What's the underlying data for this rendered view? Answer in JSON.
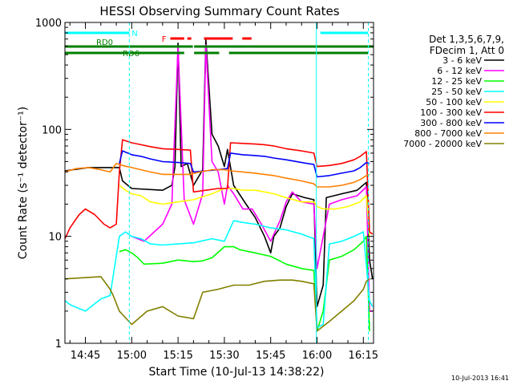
{
  "chart_data": {
    "type": "line",
    "title": "HESSI Observing Summary Count Rates",
    "xlabel": "Start Time (10-Jul-13 14:38:22)",
    "ylabel": "Count Rate (s⁻¹ detector⁻¹)",
    "y_scale": "log",
    "ylim": [
      1,
      1000
    ],
    "xlim_minutes": [
      38.37,
      138.3
    ],
    "x_ticks": [
      {
        "label": "14:45",
        "minutes": 45
      },
      {
        "label": "15:00",
        "minutes": 60
      },
      {
        "label": "15:15",
        "minutes": 75
      },
      {
        "label": "15:30",
        "minutes": 90
      },
      {
        "label": "15:45",
        "minutes": 105
      },
      {
        "label": "16:00",
        "minutes": 120
      },
      {
        "label": "16:15",
        "minutes": 135
      }
    ],
    "y_ticks": [
      {
        "label": "1",
        "value": 1
      },
      {
        "label": "10",
        "value": 10
      },
      {
        "label": "100",
        "value": 100
      },
      {
        "label": "1000",
        "value": 1000
      }
    ],
    "legend_header": [
      "Det 1,3,5,6,7,9,",
      "FDecim 1, Att 0"
    ],
    "legend_placement": "right",
    "series": [
      {
        "name": "3 - 6 keV",
        "color": "#000000",
        "points": [
          [
            38.4,
            41
          ],
          [
            46,
            44
          ],
          [
            56,
            44
          ],
          [
            57,
            33
          ],
          [
            60,
            28
          ],
          [
            70,
            27
          ],
          [
            73,
            30
          ],
          [
            74,
            45
          ],
          [
            75,
            640
          ],
          [
            76,
            45
          ],
          [
            78,
            48
          ],
          [
            80,
            30
          ],
          [
            83,
            42
          ],
          [
            84,
            700
          ],
          [
            86,
            90
          ],
          [
            88,
            70
          ],
          [
            90,
            45
          ],
          [
            91,
            65
          ],
          [
            93,
            30
          ],
          [
            97,
            20
          ],
          [
            100,
            15
          ],
          [
            103,
            10
          ],
          [
            105,
            7
          ],
          [
            106,
            10
          ],
          [
            108,
            12
          ],
          [
            110,
            19
          ],
          [
            112,
            25
          ],
          [
            116,
            23
          ],
          [
            119,
            22
          ],
          [
            120,
            2.2
          ],
          [
            122,
            3.5
          ],
          [
            123,
            23
          ],
          [
            128,
            25
          ],
          [
            133,
            27
          ],
          [
            136,
            32
          ],
          [
            137,
            6
          ],
          [
            138,
            4
          ]
        ]
      },
      {
        "name": "6 - 12 keV",
        "color": "#ff00ff",
        "points": [
          [
            60,
            10
          ],
          [
            64,
            9
          ],
          [
            70,
            13
          ],
          [
            73,
            20
          ],
          [
            75,
            600
          ],
          [
            77,
            22
          ],
          [
            80,
            13
          ],
          [
            83,
            25
          ],
          [
            84,
            620
          ],
          [
            86,
            50
          ],
          [
            88,
            40
          ],
          [
            90,
            20
          ],
          [
            91,
            30
          ],
          [
            93,
            25
          ],
          [
            96,
            18
          ],
          [
            99,
            18
          ],
          [
            102,
            13
          ],
          [
            105,
            9
          ],
          [
            108,
            14
          ],
          [
            110,
            21
          ],
          [
            112,
            26
          ],
          [
            115,
            21
          ],
          [
            119,
            20
          ],
          [
            120,
            5
          ],
          [
            122,
            10
          ],
          [
            124,
            20
          ],
          [
            128,
            22
          ],
          [
            133,
            24
          ],
          [
            136,
            29
          ],
          [
            137,
            2
          ],
          [
            138,
            2
          ]
        ]
      },
      {
        "name": "12 - 25 keV",
        "color": "#00ff00",
        "points": [
          [
            56,
            7.2
          ],
          [
            58,
            7.5
          ],
          [
            60,
            7.0
          ],
          [
            62,
            6.3
          ],
          [
            64,
            5.5
          ],
          [
            70,
            5.6
          ],
          [
            75,
            6.0
          ],
          [
            80,
            5.8
          ],
          [
            83,
            5.9
          ],
          [
            86,
            6.3
          ],
          [
            90,
            8.0
          ],
          [
            93,
            8.0
          ],
          [
            95,
            7.5
          ],
          [
            100,
            7.0
          ],
          [
            105,
            6.5
          ],
          [
            110,
            5.5
          ],
          [
            115,
            5.0
          ],
          [
            119,
            4.8
          ],
          [
            120,
            1.3
          ],
          [
            122,
            2.0
          ],
          [
            124,
            6.0
          ],
          [
            128,
            6.5
          ],
          [
            132,
            7.5
          ],
          [
            135,
            9
          ],
          [
            136,
            10
          ],
          [
            137,
            1.3
          ]
        ]
      },
      {
        "name": "25 - 50 keV",
        "color": "#00ffff",
        "points": [
          [
            38.4,
            2.5
          ],
          [
            40,
            2.3
          ],
          [
            45,
            2.0
          ],
          [
            50,
            2.6
          ],
          [
            53,
            2.8
          ],
          [
            56,
            10
          ],
          [
            58,
            11
          ],
          [
            60,
            10
          ],
          [
            63,
            9.5
          ],
          [
            66,
            8.5
          ],
          [
            70,
            8.3
          ],
          [
            75,
            8.5
          ],
          [
            80,
            8.7
          ],
          [
            86,
            9.5
          ],
          [
            90,
            9.0
          ],
          [
            93,
            14
          ],
          [
            96,
            13.5
          ],
          [
            100,
            13
          ],
          [
            105,
            12
          ],
          [
            110,
            11.5
          ],
          [
            115,
            10.5
          ],
          [
            119,
            9.5
          ],
          [
            120,
            1.4
          ],
          [
            122,
            1.5
          ],
          [
            124,
            8.5
          ],
          [
            128,
            9
          ],
          [
            132,
            10
          ],
          [
            135,
            11
          ],
          [
            137,
            2.5
          ],
          [
            138,
            2.2
          ]
        ]
      },
      {
        "name": "50 - 100 keV",
        "color": "#ffff00",
        "points": [
          [
            56,
            30
          ],
          [
            58,
            27
          ],
          [
            60,
            25
          ],
          [
            63,
            24
          ],
          [
            66,
            21
          ],
          [
            70,
            20
          ],
          [
            75,
            21
          ],
          [
            80,
            22
          ],
          [
            86,
            25
          ],
          [
            90,
            28
          ],
          [
            93,
            28
          ],
          [
            96,
            27
          ],
          [
            100,
            27
          ],
          [
            103,
            26
          ],
          [
            106,
            25
          ],
          [
            110,
            23
          ],
          [
            115,
            21
          ],
          [
            119,
            21
          ],
          [
            120,
            19
          ],
          [
            122,
            18
          ],
          [
            126,
            18
          ],
          [
            130,
            19
          ],
          [
            134,
            21
          ],
          [
            136,
            24
          ],
          [
            137,
            10
          ]
        ]
      },
      {
        "name": "100 - 300 keV",
        "color": "#ff0000",
        "points": [
          [
            38.4,
            9.5
          ],
          [
            40,
            12
          ],
          [
            43,
            16
          ],
          [
            45,
            18
          ],
          [
            48,
            16
          ],
          [
            51,
            13
          ],
          [
            53,
            12
          ],
          [
            55,
            13
          ],
          [
            56,
            40
          ],
          [
            57,
            80
          ],
          [
            60,
            75
          ],
          [
            63,
            72
          ],
          [
            66,
            69
          ],
          [
            70,
            66
          ],
          [
            75,
            65
          ],
          [
            79,
            64
          ],
          [
            80,
            26
          ],
          [
            84,
            27
          ],
          [
            88,
            28
          ],
          [
            91,
            28
          ],
          [
            92,
            75
          ],
          [
            96,
            74
          ],
          [
            100,
            73
          ],
          [
            103,
            72
          ],
          [
            106,
            70
          ],
          [
            110,
            66
          ],
          [
            115,
            63
          ],
          [
            119,
            60
          ],
          [
            120,
            45
          ],
          [
            124,
            46
          ],
          [
            128,
            48
          ],
          [
            132,
            52
          ],
          [
            134,
            56
          ],
          [
            136,
            62
          ],
          [
            137,
            11
          ],
          [
            138,
            10.5
          ]
        ]
      },
      {
        "name": "300 - 800 keV",
        "color": "#0000ff",
        "points": [
          [
            56,
            48
          ],
          [
            57,
            63
          ],
          [
            60,
            58
          ],
          [
            63,
            56
          ],
          [
            66,
            53
          ],
          [
            70,
            50
          ],
          [
            75,
            49
          ],
          [
            79,
            48
          ],
          [
            80,
            40
          ],
          [
            84,
            41
          ],
          [
            88,
            42
          ],
          [
            91,
            43
          ],
          [
            92,
            60
          ],
          [
            96,
            58
          ],
          [
            100,
            57
          ],
          [
            103,
            56
          ],
          [
            106,
            54
          ],
          [
            110,
            52
          ],
          [
            115,
            49
          ],
          [
            119,
            47
          ],
          [
            120,
            36
          ],
          [
            124,
            37
          ],
          [
            128,
            39
          ],
          [
            132,
            41
          ],
          [
            134,
            44
          ],
          [
            136,
            49
          ],
          [
            137,
            48
          ]
        ]
      },
      {
        "name": "800 - 7000 keV",
        "color": "#ff8000",
        "points": [
          [
            38.4,
            40
          ],
          [
            42,
            43
          ],
          [
            46,
            44
          ],
          [
            50,
            42
          ],
          [
            53,
            40
          ],
          [
            55,
            48
          ],
          [
            57,
            46
          ],
          [
            60,
            44
          ],
          [
            63,
            42
          ],
          [
            66,
            40
          ],
          [
            70,
            38
          ],
          [
            75,
            38
          ],
          [
            79,
            38
          ],
          [
            82,
            40
          ],
          [
            86,
            42
          ],
          [
            90,
            42
          ],
          [
            92,
            41
          ],
          [
            96,
            40
          ],
          [
            100,
            39
          ],
          [
            103,
            38
          ],
          [
            106,
            37
          ],
          [
            110,
            35
          ],
          [
            115,
            33
          ],
          [
            119,
            31
          ],
          [
            120,
            29
          ],
          [
            124,
            29
          ],
          [
            128,
            30
          ],
          [
            132,
            32
          ],
          [
            134,
            34
          ],
          [
            136,
            37
          ],
          [
            137,
            38
          ]
        ]
      },
      {
        "name": "7000 - 20000 keV",
        "color": "#808000",
        "points": [
          [
            38.4,
            4.0
          ],
          [
            44,
            4.1
          ],
          [
            50,
            4.2
          ],
          [
            53,
            3.2
          ],
          [
            54,
            2.8
          ],
          [
            56,
            2.0
          ],
          [
            60,
            1.5
          ],
          [
            65,
            2.0
          ],
          [
            70,
            2.2
          ],
          [
            75,
            1.8
          ],
          [
            80,
            1.7
          ],
          [
            83,
            3.0
          ],
          [
            88,
            3.2
          ],
          [
            93,
            3.5
          ],
          [
            98,
            3.5
          ],
          [
            103,
            3.8
          ],
          [
            108,
            3.9
          ],
          [
            112,
            3.9
          ],
          [
            115,
            3.8
          ],
          [
            119,
            3.6
          ],
          [
            120,
            1.3
          ],
          [
            124,
            1.6
          ],
          [
            128,
            2.0
          ],
          [
            132,
            2.5
          ],
          [
            135,
            3.2
          ],
          [
            136,
            3.8
          ],
          [
            137,
            4.0
          ]
        ]
      }
    ],
    "flag_bars": [
      {
        "label": "N",
        "color": "#00ffff",
        "segments": [
          [
            38.4,
            59.2
          ],
          [
            121.1,
            136.5
          ]
        ]
      },
      {
        "label": "F",
        "color": "#ff0000",
        "segments": [
          [
            72.5,
            77
          ],
          [
            78,
            79.3
          ],
          [
            83.4,
            92.7
          ],
          [
            95.8,
            98.8
          ]
        ]
      },
      {
        "label": "RD0",
        "color": "#008000",
        "segments": [
          [
            38.4,
            79.8
          ],
          [
            80.2,
            138.2
          ]
        ]
      },
      {
        "label": "RD6",
        "color": "#008000",
        "segments": [
          [
            38.4,
            77
          ],
          [
            80.2,
            88.3
          ],
          [
            91.5,
            136.5
          ]
        ]
      }
    ],
    "vertical_markers": [
      {
        "minutes": 59.2,
        "color": "#00ffff",
        "style": "dashed"
      },
      {
        "minutes": 119.8,
        "color": "#00ffff",
        "style": "solid"
      },
      {
        "minutes": 136.6,
        "color": "#00ffff",
        "style": "dashed"
      }
    ]
  },
  "footer": {
    "timestamp": "10-Jul-2013 16:41"
  }
}
